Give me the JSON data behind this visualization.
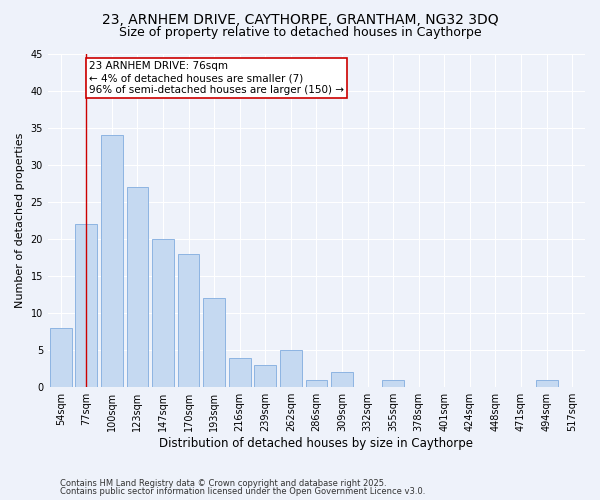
{
  "title1": "23, ARNHEM DRIVE, CAYTHORPE, GRANTHAM, NG32 3DQ",
  "title2": "Size of property relative to detached houses in Caythorpe",
  "xlabel": "Distribution of detached houses by size in Caythorpe",
  "ylabel": "Number of detached properties",
  "categories": [
    "54sqm",
    "77sqm",
    "100sqm",
    "123sqm",
    "147sqm",
    "170sqm",
    "193sqm",
    "216sqm",
    "239sqm",
    "262sqm",
    "286sqm",
    "309sqm",
    "332sqm",
    "355sqm",
    "378sqm",
    "401sqm",
    "424sqm",
    "448sqm",
    "471sqm",
    "494sqm",
    "517sqm"
  ],
  "values": [
    8,
    22,
    34,
    27,
    20,
    18,
    12,
    4,
    3,
    5,
    1,
    2,
    0,
    1,
    0,
    0,
    0,
    0,
    0,
    1,
    0
  ],
  "bar_color": "#c5d9f1",
  "bar_edge_color": "#8db4e2",
  "ylim": [
    0,
    45
  ],
  "yticks": [
    0,
    5,
    10,
    15,
    20,
    25,
    30,
    35,
    40,
    45
  ],
  "property_line_x": 1,
  "annotation_line1": "23 ARNHEM DRIVE: 76sqm",
  "annotation_line2": "← 4% of detached houses are smaller (7)",
  "annotation_line3": "96% of semi-detached houses are larger (150) →",
  "annotation_box_color": "#ffffff",
  "annotation_box_edge": "#cc0000",
  "footer1": "Contains HM Land Registry data © Crown copyright and database right 2025.",
  "footer2": "Contains public sector information licensed under the Open Government Licence v3.0.",
  "bg_color": "#eef2fa",
  "grid_color": "#ffffff",
  "title1_fontsize": 10,
  "title2_fontsize": 9,
  "tick_fontsize": 7,
  "xlabel_fontsize": 8.5,
  "ylabel_fontsize": 8,
  "annotation_fontsize": 7.5,
  "footer_fontsize": 6
}
